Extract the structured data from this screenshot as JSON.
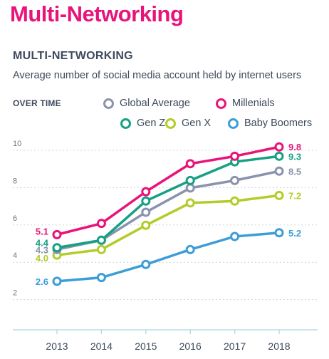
{
  "page": {
    "title": "Multi-Networking",
    "colors": {
      "title": "#e8147a",
      "text": "#3c4a5c",
      "muted": "#6b7686",
      "grid": "#cfd6de",
      "axis": "#b7dbe8"
    }
  },
  "chart_data": {
    "type": "line",
    "title": "MULTI-NETWORKING",
    "subtitle": "Average number of social media account held by internet users",
    "legend_title": "OVER TIME",
    "legend_position": "top-right",
    "grid": true,
    "x": [
      "2013",
      "2014",
      "2015",
      "2016",
      "2017",
      "2018"
    ],
    "y_ticks": [
      "2",
      "4",
      "6",
      "8",
      "10"
    ],
    "ylim": [
      0,
      10.4
    ],
    "xlabel": "",
    "ylabel": "",
    "series": [
      {
        "name": "Millenials",
        "color": "#e8147a",
        "values": [
          5.1,
          5.7,
          7.4,
          8.9,
          9.3,
          9.8
        ],
        "start_label": "5.1",
        "end_label": "9.8"
      },
      {
        "name": "Gen Z",
        "color": "#17a083",
        "values": [
          4.4,
          4.8,
          6.9,
          8.0,
          9.0,
          9.3
        ],
        "start_label": "4.4",
        "end_label": "9.3"
      },
      {
        "name": "Global Average",
        "color": "#8a93ad",
        "values": [
          4.3,
          4.8,
          6.3,
          7.6,
          8.0,
          8.5
        ],
        "start_label": "4.3",
        "end_label": "8.5"
      },
      {
        "name": "Gen X",
        "color": "#b3cc2a",
        "values": [
          4.0,
          4.3,
          5.6,
          6.8,
          6.9,
          7.2
        ],
        "start_label": "4.0",
        "end_label": "7.2"
      },
      {
        "name": "Baby Boomers",
        "color": "#3d9dd8",
        "values": [
          2.6,
          2.8,
          3.5,
          4.3,
          5.0,
          5.2
        ],
        "start_label": "2.6",
        "end_label": "5.2"
      }
    ]
  }
}
